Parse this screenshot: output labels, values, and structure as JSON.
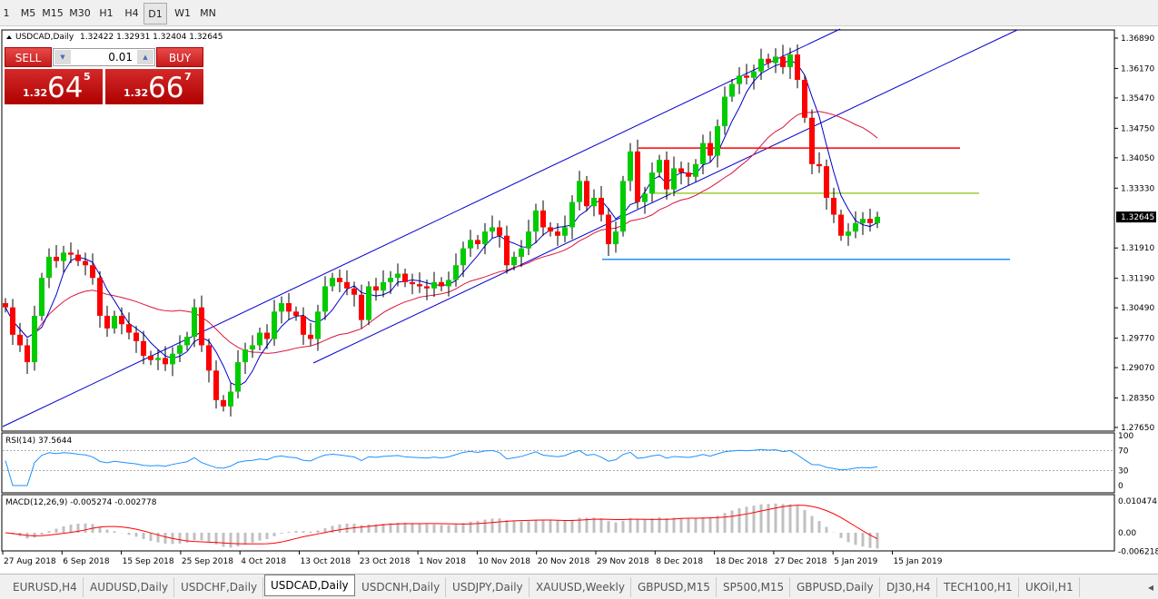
{
  "timeframes": [
    "1",
    "M5",
    "M15",
    "M30",
    "H1",
    "H4",
    "D1",
    "W1",
    "MN"
  ],
  "selected_timeframe": "D1",
  "chart": {
    "header": "USDCAD,Daily",
    "ohlc": "1.32422 1.32931 1.32404 1.32645",
    "current_price": "1.32645",
    "price_labels": [
      "1.36890",
      "1.36170",
      "1.35470",
      "1.34750",
      "1.34050",
      "1.33330",
      "1.31910",
      "1.31190",
      "1.30490",
      "1.29770",
      "1.29070",
      "1.28350",
      "1.27650"
    ],
    "price_range": [
      1.2765,
      1.3689
    ],
    "date_labels": [
      "27 Aug 2018",
      "6 Sep 2018",
      "15 Sep 2018",
      "25 Sep 2018",
      "4 Oct 2018",
      "13 Oct 2018",
      "23 Oct 2018",
      "1 Nov 2018",
      "10 Nov 2018",
      "20 Nov 2018",
      "29 Nov 2018",
      "8 Dec 2018",
      "18 Dec 2018",
      "27 Dec 2018",
      "5 Jan 2019",
      "15 Jan 2019"
    ],
    "closes": [
      1.305,
      1.2985,
      1.296,
      1.292,
      1.303,
      1.312,
      1.317,
      1.316,
      1.318,
      1.3175,
      1.316,
      1.315,
      1.312,
      1.303,
      1.3,
      1.303,
      1.301,
      1.299,
      1.297,
      1.2935,
      1.2925,
      1.293,
      1.2915,
      1.294,
      1.296,
      1.298,
      1.305,
      1.296,
      1.29,
      1.283,
      1.2815,
      1.285,
      1.292,
      1.295,
      1.296,
      1.299,
      1.2975,
      1.304,
      1.306,
      1.304,
      1.303,
      1.2985,
      1.2975,
      1.304,
      1.31,
      1.312,
      1.311,
      1.3095,
      1.308,
      1.302,
      1.31,
      1.309,
      1.311,
      1.312,
      1.313,
      1.311,
      1.3105,
      1.31,
      1.3095,
      1.311,
      1.31,
      1.3115,
      1.315,
      1.319,
      1.321,
      1.32,
      1.323,
      1.324,
      1.322,
      1.315,
      1.317,
      1.319,
      1.323,
      1.328,
      1.324,
      1.323,
      1.322,
      1.324,
      1.33,
      1.335,
      1.329,
      1.331,
      1.327,
      1.32,
      1.323,
      1.335,
      1.342,
      1.33,
      1.332,
      1.337,
      1.34,
      1.333,
      1.338,
      1.337,
      1.336,
      1.339,
      1.344,
      1.341,
      1.348,
      1.355,
      1.358,
      1.36,
      1.3595,
      1.361,
      1.364,
      1.363,
      1.3645,
      1.362,
      1.365,
      1.359,
      1.35,
      1.339,
      1.3385,
      1.331,
      1.327,
      1.322,
      1.323,
      1.325,
      1.326,
      1.325,
      1.3265
    ],
    "horizontal_levels": [
      {
        "price": 1.3428,
        "color": "#ff0000"
      },
      {
        "price": 1.3321,
        "color": "#9acd32"
      },
      {
        "price": 1.3164,
        "color": "#1e90ff"
      }
    ],
    "colors": {
      "bull": "#00cc00",
      "bear": "#ff0000",
      "ma_fast": "#0000cc",
      "ma_slow": "#dc143c",
      "channel": "#0000cc"
    }
  },
  "rsi": {
    "label": "RSI(14) 37.5644",
    "levels": [
      "100",
      "70",
      "30",
      "0"
    ],
    "color": "#1e90ff"
  },
  "macd": {
    "label": "MACD(12,26,9) -0.005274 -0.002778",
    "levels": [
      "0.010474",
      "0.00",
      "-0.006218"
    ],
    "signal_color": "#ff0000",
    "hist_color": "#c0c0c0"
  },
  "trade_panel": {
    "sell": "SELL",
    "buy": "BUY",
    "lot": "0.01",
    "bid_prefix": "1.32",
    "bid_big": "64",
    "bid_sup": "5",
    "ask_prefix": "1.32",
    "ask_big": "66",
    "ask_sup": "7"
  },
  "tabs": [
    "EURUSD,H4",
    "AUDUSD,Daily",
    "USDCHF,Daily",
    "USDCAD,Daily",
    "USDCNH,Daily",
    "USDJPY,Daily",
    "XAUUSD,Weekly",
    "GBPUSD,M15",
    "SP500,M15",
    "GBPUSD,Daily",
    "DJ30,H4",
    "TECH100,H1",
    "UKOil,H1"
  ],
  "selected_tab": "USDCAD,Daily"
}
